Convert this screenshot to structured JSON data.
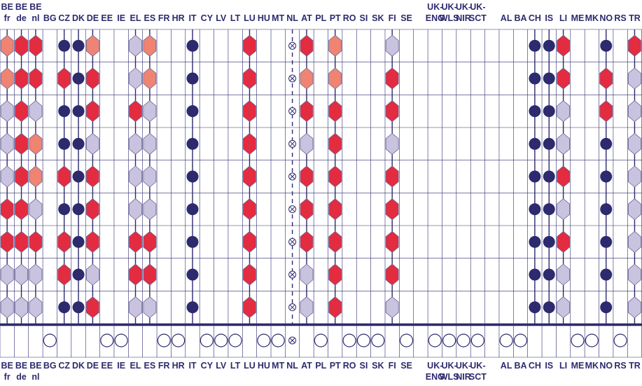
{
  "chart_data": {
    "type": "table",
    "colors": {
      "red": "#e32c3f",
      "salmon": "#ef8472",
      "lavender": "#c9c3e0",
      "navy": "#2d2a6e",
      "grid": "#2d2a6e",
      "hex_stroke": "#6b6496",
      "label_bold": "#2d2a6e",
      "label_light": "#4a4685"
    },
    "legend_codes": {
      "R": "red hexagon",
      "S": "salmon hexagon",
      "L": "lavender hexagon",
      "D": "navy dot",
      "X": "circled x",
      "": "empty"
    },
    "columns": [
      {
        "top": [
          "BE",
          "fr"
        ],
        "bottom": [
          "BE",
          "fr"
        ],
        "cells": [
          "S",
          "S",
          "L",
          "L",
          "L",
          "R",
          "R",
          "L",
          "L"
        ],
        "base": ""
      },
      {
        "top": [
          "BE",
          "de"
        ],
        "bottom": [
          "BE",
          "de"
        ],
        "cells": [
          "R",
          "R",
          "R",
          "R",
          "R",
          "R",
          "R",
          "L",
          "L"
        ],
        "base": ""
      },
      {
        "top": [
          "BE",
          "nl"
        ],
        "bottom": [
          "BE",
          "nl"
        ],
        "cells": [
          "R",
          "R",
          "L",
          "S",
          "S",
          "L",
          "R",
          "L",
          "L"
        ],
        "base": ""
      },
      {
        "top": [
          "BG"
        ],
        "bottom": [
          "BG"
        ],
        "cells": [
          "",
          "",
          "",
          "",
          "",
          "",
          "",
          "",
          ""
        ],
        "base": "O"
      },
      {
        "top": [
          "CZ"
        ],
        "bottom": [
          "CZ"
        ],
        "cells": [
          "D",
          "R",
          "D",
          "D",
          "R",
          "D",
          "R",
          "R",
          "D"
        ],
        "base": ""
      },
      {
        "top": [
          "DK"
        ],
        "bottom": [
          "DK"
        ],
        "cells": [
          "D",
          "D",
          "D",
          "D",
          "D",
          "D",
          "D",
          "D",
          "D"
        ],
        "base": ""
      },
      {
        "top": [
          "DE"
        ],
        "bottom": [
          "DE"
        ],
        "cells": [
          "S",
          "R",
          "R",
          "L",
          "R",
          "R",
          "R",
          "L",
          "R"
        ],
        "base": ""
      },
      {
        "top": [
          "EE"
        ],
        "bottom": [
          "EE"
        ],
        "cells": [
          "",
          "",
          "",
          "",
          "",
          "",
          "",
          "",
          ""
        ],
        "base": "O"
      },
      {
        "top": [
          "IE"
        ],
        "bottom": [
          "IE"
        ],
        "cells": [
          "",
          "",
          "",
          "",
          "",
          "",
          "",
          "",
          ""
        ],
        "base": "O"
      },
      {
        "top": [
          "EL"
        ],
        "bottom": [
          "EL"
        ],
        "cells": [
          "L",
          "L",
          "R",
          "L",
          "L",
          "L",
          "R",
          "R",
          "L"
        ],
        "base": ""
      },
      {
        "top": [
          "ES"
        ],
        "bottom": [
          "ES"
        ],
        "cells": [
          "S",
          "S",
          "L",
          "L",
          "L",
          "L",
          "R",
          "R",
          "L"
        ],
        "base": ""
      },
      {
        "top": [
          "FR"
        ],
        "bottom": [
          "FR"
        ],
        "cells": [
          "",
          "",
          "",
          "",
          "",
          "",
          "",
          "",
          ""
        ],
        "base": "O"
      },
      {
        "top": [
          "HR"
        ],
        "bottom": [
          "HR"
        ],
        "cells": [
          "",
          "",
          "",
          "",
          "",
          "",
          "",
          "",
          ""
        ],
        "base": "O"
      },
      {
        "top": [
          "IT"
        ],
        "bottom": [
          "IT"
        ],
        "cells": [
          "D",
          "D",
          "D",
          "D",
          "D",
          "D",
          "D",
          "D",
          "D"
        ],
        "base": ""
      },
      {
        "top": [
          "CY"
        ],
        "bottom": [
          "CY"
        ],
        "cells": [
          "",
          "",
          "",
          "",
          "",
          "",
          "",
          "",
          ""
        ],
        "base": "O"
      },
      {
        "top": [
          "LV"
        ],
        "bottom": [
          "LV"
        ],
        "cells": [
          "",
          "",
          "",
          "",
          "",
          "",
          "",
          "",
          ""
        ],
        "base": "O"
      },
      {
        "top": [
          "LT"
        ],
        "bottom": [
          "LT"
        ],
        "cells": [
          "",
          "",
          "",
          "",
          "",
          "",
          "",
          "",
          ""
        ],
        "base": "O"
      },
      {
        "top": [
          "LU"
        ],
        "bottom": [
          "LU"
        ],
        "cells": [
          "R",
          "R",
          "R",
          "R",
          "R",
          "R",
          "R",
          "R",
          "R"
        ],
        "base": ""
      },
      {
        "top": [
          "HU"
        ],
        "bottom": [
          "HU"
        ],
        "cells": [
          "",
          "",
          "",
          "",
          "",
          "",
          "",
          "",
          ""
        ],
        "base": "O"
      },
      {
        "top": [
          "MT"
        ],
        "bottom": [
          "MT"
        ],
        "cells": [
          "",
          "",
          "",
          "",
          "",
          "",
          "",
          "",
          ""
        ],
        "base": "O"
      },
      {
        "top": [
          "NL"
        ],
        "bottom": [
          "NL"
        ],
        "cells": [
          "X",
          "X",
          "X",
          "X",
          "X",
          "X",
          "X",
          "X",
          "X"
        ],
        "base": "X"
      },
      {
        "top": [
          "AT"
        ],
        "bottom": [
          "AT"
        ],
        "cells": [
          "R",
          "S",
          "R",
          "L",
          "R",
          "R",
          "R",
          "L",
          "L"
        ],
        "base": ""
      },
      {
        "top": [
          "PL"
        ],
        "bottom": [
          "PL"
        ],
        "cells": [
          "",
          "",
          "",
          "",
          "",
          "",
          "",
          "",
          ""
        ],
        "base": "O"
      },
      {
        "top": [
          "PT"
        ],
        "bottom": [
          "PT"
        ],
        "cells": [
          "S",
          "S",
          "R",
          "R",
          "R",
          "R",
          "R",
          "R",
          "R"
        ],
        "base": ""
      },
      {
        "top": [
          "RO"
        ],
        "bottom": [
          "RO"
        ],
        "cells": [
          "",
          "",
          "",
          "",
          "",
          "",
          "",
          "",
          ""
        ],
        "base": "O"
      },
      {
        "top": [
          "SI"
        ],
        "bottom": [
          "SI"
        ],
        "cells": [
          "",
          "",
          "",
          "",
          "",
          "",
          "",
          "",
          ""
        ],
        "base": "O"
      },
      {
        "top": [
          "SK"
        ],
        "bottom": [
          "SK"
        ],
        "cells": [
          "",
          "",
          "",
          "",
          "",
          "",
          "",
          "",
          ""
        ],
        "base": "O"
      },
      {
        "top": [
          "FI"
        ],
        "bottom": [
          "FI"
        ],
        "cells": [
          "L",
          "R",
          "R",
          "L",
          "R",
          "R",
          "R",
          "R",
          "L"
        ],
        "base": ""
      },
      {
        "top": [
          "SE"
        ],
        "bottom": [
          "SE"
        ],
        "cells": [
          "",
          "",
          "",
          "",
          "",
          "",
          "",
          "",
          ""
        ],
        "base": "O"
      },
      {
        "top": [
          "",
          ""
        ],
        "bottom": [
          "",
          ""
        ],
        "cells": [
          "",
          "",
          "",
          "",
          "",
          "",
          "",
          "",
          ""
        ],
        "base": ""
      },
      {
        "top": [
          "UK-",
          "ENG"
        ],
        "bottom": [
          "UK-",
          "ENG"
        ],
        "cells": [
          "",
          "",
          "",
          "",
          "",
          "",
          "",
          "",
          ""
        ],
        "base": "O"
      },
      {
        "top": [
          "UK-",
          "WLS"
        ],
        "bottom": [
          "UK-",
          "WLS"
        ],
        "cells": [
          "",
          "",
          "",
          "",
          "",
          "",
          "",
          "",
          ""
        ],
        "base": "O"
      },
      {
        "top": [
          "UK-",
          "NIR"
        ],
        "bottom": [
          "UK-",
          "NIR"
        ],
        "cells": [
          "",
          "",
          "",
          "",
          "",
          "",
          "",
          "",
          ""
        ],
        "base": "O"
      },
      {
        "top": [
          "UK-",
          "SCT"
        ],
        "bottom": [
          "UK-",
          "SCT"
        ],
        "cells": [
          "",
          "",
          "",
          "",
          "",
          "",
          "",
          "",
          ""
        ],
        "base": "O"
      },
      {
        "top": [
          "",
          ""
        ],
        "bottom": [
          "",
          ""
        ],
        "cells": [
          "",
          "",
          "",
          "",
          "",
          "",
          "",
          "",
          ""
        ],
        "base": ""
      },
      {
        "top": [
          "AL"
        ],
        "bottom": [
          "AL"
        ],
        "cells": [
          "",
          "",
          "",
          "",
          "",
          "",
          "",
          "",
          ""
        ],
        "base": "O"
      },
      {
        "top": [
          "BA"
        ],
        "bottom": [
          "BA"
        ],
        "cells": [
          "",
          "",
          "",
          "",
          "",
          "",
          "",
          "",
          ""
        ],
        "base": "O"
      },
      {
        "top": [
          "CH"
        ],
        "bottom": [
          "CH"
        ],
        "cells": [
          "D",
          "D",
          "D",
          "D",
          "D",
          "D",
          "D",
          "D",
          "D"
        ],
        "base": ""
      },
      {
        "top": [
          "IS"
        ],
        "bottom": [
          "IS"
        ],
        "cells": [
          "D",
          "D",
          "D",
          "D",
          "D",
          "D",
          "D",
          "D",
          "D"
        ],
        "base": ""
      },
      {
        "top": [
          "LI"
        ],
        "bottom": [
          "LI"
        ],
        "cells": [
          "R",
          "R",
          "L",
          "L",
          "R",
          "L",
          "R",
          "L",
          "L"
        ],
        "base": ""
      },
      {
        "top": [
          "ME"
        ],
        "bottom": [
          "ME"
        ],
        "cells": [
          "",
          "",
          "",
          "",
          "",
          "",
          "",
          "",
          ""
        ],
        "base": "O"
      },
      {
        "top": [
          "MK"
        ],
        "bottom": [
          "MK"
        ],
        "cells": [
          "",
          "",
          "",
          "",
          "",
          "",
          "",
          "",
          ""
        ],
        "base": "O"
      },
      {
        "top": [
          "NO"
        ],
        "bottom": [
          "NO"
        ],
        "cells": [
          "D",
          "R",
          "R",
          "D",
          "D",
          "D",
          "D",
          "D",
          "D"
        ],
        "base": ""
      },
      {
        "top": [
          "RS"
        ],
        "bottom": [
          "RS"
        ],
        "cells": [
          "",
          "",
          "",
          "",
          "",
          "",
          "",
          "",
          ""
        ],
        "base": "O"
      },
      {
        "top": [
          "TR"
        ],
        "bottom": [
          "TR"
        ],
        "cells": [
          "R",
          "L",
          "L",
          "L",
          "L",
          "L",
          "L",
          "L",
          "L"
        ],
        "base": ""
      }
    ]
  }
}
